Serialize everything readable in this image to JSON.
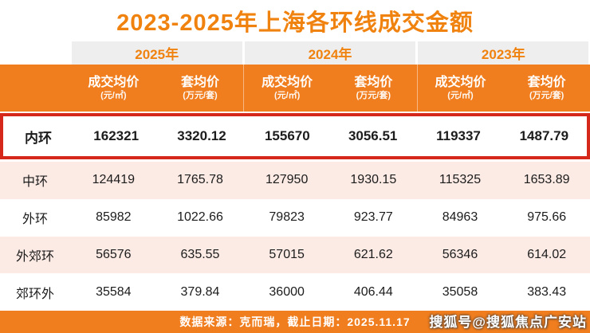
{
  "title": "2023-2025年上海各环线成交金额",
  "colors": {
    "orange_bar": "#F07D1E",
    "orange_text": "#F0820F",
    "highlight_border": "#D6281A",
    "row_pink": "#FCEAE4",
    "year_cell_bg": "#EEEEEE"
  },
  "header": {
    "year_groups": [
      "2025年",
      "2024年",
      "2023年"
    ],
    "sub_columns": [
      {
        "label": "成交均价",
        "unit": "(元/㎡)"
      },
      {
        "label": "套均价",
        "unit": "(万元/套)"
      }
    ]
  },
  "chart_data": {
    "type": "table",
    "title": "2023-2025年上海各环线成交金额",
    "column_groups": [
      "2025年",
      "2024年",
      "2023年"
    ],
    "columns": [
      "2025年 成交均价(元/㎡)",
      "2025年 套均价(万元/套)",
      "2024年 成交均价(元/㎡)",
      "2024年 套均价(万元/套)",
      "2023年 成交均价(元/㎡)",
      "2023年 套均价(万元/套)"
    ],
    "rows": [
      {
        "label": "内环",
        "highlighted": true,
        "values": [
          "162321",
          "3320.12",
          "155670",
          "3056.51",
          "119337",
          "1487.79"
        ]
      },
      {
        "label": "中环",
        "highlighted": false,
        "values": [
          "124419",
          "1765.78",
          "127950",
          "1930.15",
          "115325",
          "1653.89"
        ]
      },
      {
        "label": "外环",
        "highlighted": false,
        "values": [
          "85982",
          "1022.66",
          "79823",
          "923.77",
          "84963",
          "975.66"
        ]
      },
      {
        "label": "外郊环",
        "highlighted": false,
        "values": [
          "56576",
          "635.55",
          "57015",
          "621.62",
          "56346",
          "614.02"
        ]
      },
      {
        "label": "郊环外",
        "highlighted": false,
        "values": [
          "35584",
          "379.84",
          "36000",
          "406.44",
          "35058",
          "383.43"
        ]
      }
    ]
  },
  "footer": {
    "source_note": "数据来源：克而瑞，截止日期：2025.11.17"
  },
  "watermark": "搜狐号@搜狐焦点广安站"
}
